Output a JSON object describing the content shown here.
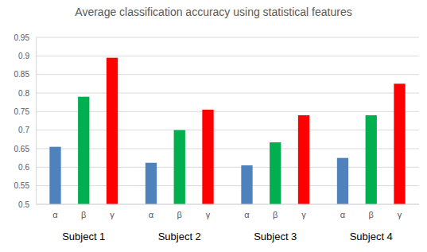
{
  "chart_data": {
    "type": "bar",
    "title": "Average classification accuracy using statistical features",
    "categories": [
      "Subject 1",
      "Subject 2",
      "Subject 3",
      "Subject 4"
    ],
    "series": [
      {
        "name": "α",
        "color": "#4f81bd",
        "values": [
          0.655,
          0.612,
          0.605,
          0.625
        ]
      },
      {
        "name": "β",
        "color": "#00b050",
        "values": [
          0.79,
          0.7,
          0.667,
          0.74
        ]
      },
      {
        "name": "γ",
        "color": "#ff0000",
        "values": [
          0.895,
          0.755,
          0.74,
          0.825
        ]
      }
    ],
    "ylim": [
      0.5,
      0.95
    ],
    "yticks": [
      0.5,
      0.55,
      0.6,
      0.65,
      0.7,
      0.75,
      0.8,
      0.85,
      0.9,
      0.95
    ],
    "grid": true
  }
}
